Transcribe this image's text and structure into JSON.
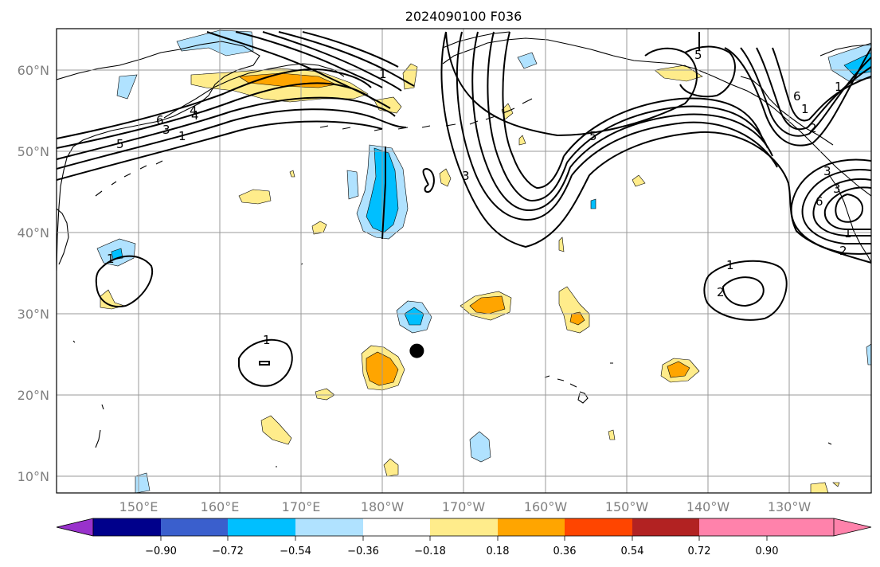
{
  "title": "2024090100 F036",
  "latitude_labels": [
    "60°N",
    "50°N",
    "40°N",
    "30°N",
    "20°N",
    "10°N"
  ],
  "longitude_labels": [
    "150°E",
    "160°E",
    "170°E",
    "180°W",
    "170°W",
    "160°W",
    "150°W",
    "140°W",
    "130°W"
  ],
  "colorbar": {
    "ticks": [
      "−0.90",
      "−0.72",
      "−0.54",
      "−0.36",
      "−0.18",
      "0.18",
      "0.36",
      "0.54",
      "0.72",
      "0.90"
    ],
    "colors": [
      "#9932cc",
      "#00008b",
      "#3a5fcd",
      "#00bfff",
      "#b0e2ff",
      "#ffffff",
      "#ffec8b",
      "#ffa500",
      "#ff4500",
      "#b22222",
      "#ff82ab"
    ]
  },
  "contour_labels": [
    "5",
    "1",
    "6",
    "3",
    "4",
    "1",
    "1",
    "3",
    "5",
    "5",
    "1",
    "3",
    "6",
    "2",
    "6",
    "3",
    "1",
    "2",
    "1",
    "2",
    "1",
    "1",
    "4"
  ],
  "marker": {
    "lon": 180.8,
    "lat": 25.4,
    "color": "#000000"
  }
}
